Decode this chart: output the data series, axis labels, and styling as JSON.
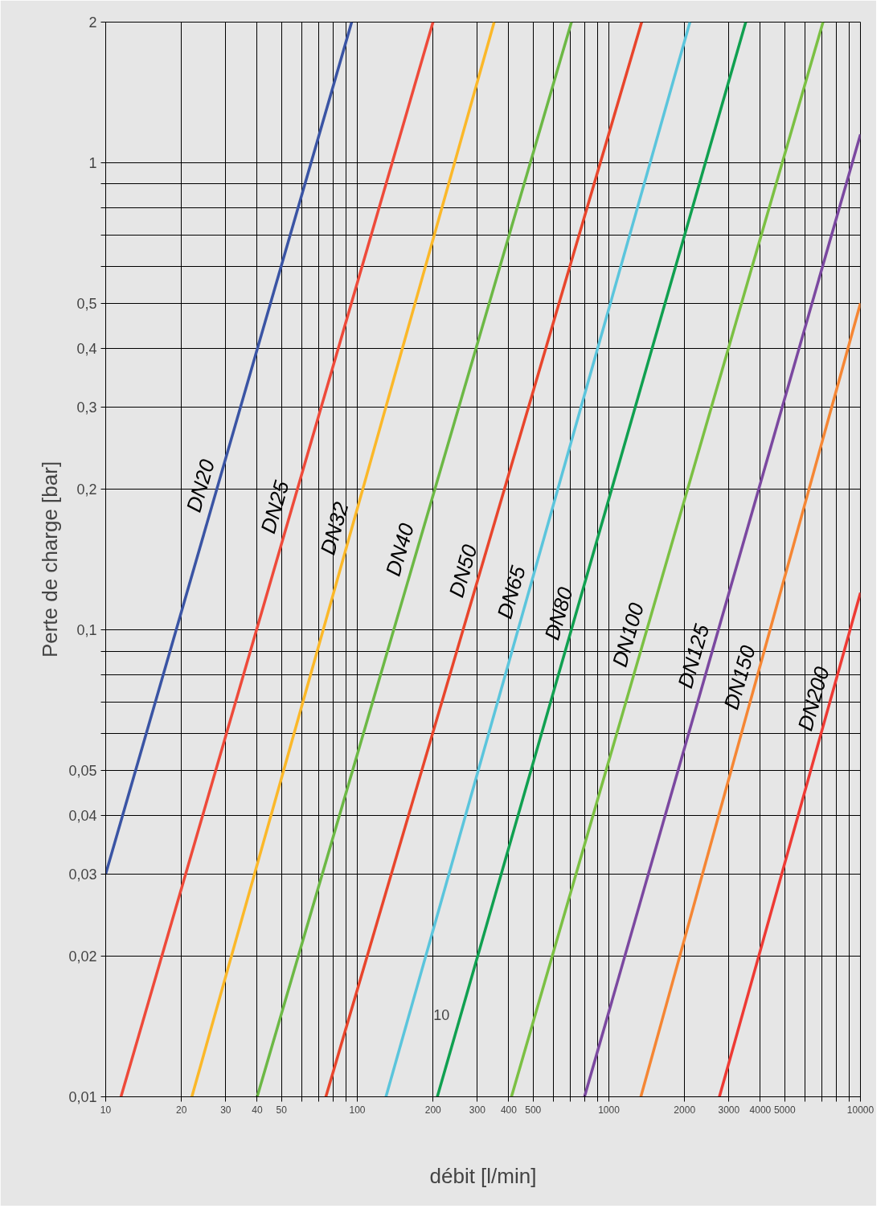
{
  "chart_data": {
    "type": "line",
    "xlabel": "débit [l/min]",
    "ylabel": "Perte de charge [bar]",
    "log": "xy",
    "grid": true,
    "xlim": [
      10,
      10000
    ],
    "ylim": [
      0.01,
      2
    ],
    "xticks": [
      10,
      20,
      30,
      40,
      50,
      {
        "value": 60,
        "label": null
      },
      {
        "value": 70,
        "label": null
      },
      {
        "value": 80,
        "label": null
      },
      {
        "value": 90,
        "label": null
      },
      100,
      200,
      300,
      400,
      500,
      {
        "value": 600,
        "label": null
      },
      {
        "value": 700,
        "label": null
      },
      {
        "value": 800,
        "label": null
      },
      {
        "value": 900,
        "label": null
      },
      1000,
      2000,
      3000,
      4000,
      5000,
      {
        "value": 6000,
        "label": null
      },
      {
        "value": 7000,
        "label": null
      },
      {
        "value": 8000,
        "label": null
      },
      {
        "value": 9000,
        "label": null
      },
      10000
    ],
    "yticks": [
      {
        "value": 0.01,
        "label": "0,01"
      },
      {
        "value": 0.02,
        "label": "0,02"
      },
      {
        "value": 0.03,
        "label": "0,03"
      },
      {
        "value": 0.04,
        "label": "0,04"
      },
      {
        "value": 0.05,
        "label": "0,05"
      },
      {
        "value": 0.06,
        "label": null
      },
      {
        "value": 0.07,
        "label": null
      },
      {
        "value": 0.08,
        "label": null
      },
      {
        "value": 0.09,
        "label": null
      },
      {
        "value": 0.1,
        "label": "0,1"
      },
      {
        "value": 0.2,
        "label": "0,2"
      },
      {
        "value": 0.3,
        "label": "0,3"
      },
      {
        "value": 0.4,
        "label": "0,4"
      },
      {
        "value": 0.5,
        "label": "0,5"
      },
      {
        "value": 0.6,
        "label": null
      },
      {
        "value": 0.7,
        "label": null
      },
      {
        "value": 0.8,
        "label": null
      },
      {
        "value": 0.9,
        "label": null
      },
      1,
      2
    ],
    "series": [
      {
        "name": "DN20",
        "color": "#3a54a4",
        "x": [
          10,
          95
        ],
        "values": [
          0.03,
          2
        ]
      },
      {
        "name": "DN25",
        "color": "#ee4a3a",
        "x": [
          11.5,
          200
        ],
        "values": [
          0.01,
          2
        ]
      },
      {
        "name": "DN32",
        "color": "#fbb829",
        "x": [
          22,
          350
        ],
        "values": [
          0.01,
          2
        ]
      },
      {
        "name": "DN40",
        "color": "#6cb845",
        "x": [
          40,
          710
        ],
        "values": [
          0.01,
          2
        ]
      },
      {
        "name": "DN50",
        "color": "#e8452c",
        "x": [
          75,
          1350
        ],
        "values": [
          0.01,
          2
        ]
      },
      {
        "name": "DN65",
        "color": "#5bc5dc",
        "x": [
          130,
          2100
        ],
        "values": [
          0.01,
          2
        ]
      },
      {
        "name": "DN80",
        "color": "#10a050",
        "x": [
          208,
          3500
        ],
        "values": [
          0.01,
          2
        ]
      },
      {
        "name": "DN100",
        "color": "#7bc043",
        "x": [
          410,
          7100
        ],
        "values": [
          0.01,
          2
        ]
      },
      {
        "name": "DN125",
        "color": "#7b48a0",
        "x": [
          800,
          10000
        ],
        "values": [
          0.01,
          1.15
        ]
      },
      {
        "name": "DN150",
        "color": "#f58634",
        "x": [
          1340,
          10000
        ],
        "values": [
          0.01,
          0.5
        ]
      },
      {
        "name": "DN200",
        "color": "#ee3a34",
        "x": [
          2750,
          10000
        ],
        "values": [
          0.01,
          0.12
        ]
      }
    ],
    "annotations": [
      {
        "text": "10",
        "x": 216,
        "y": 0.015
      }
    ]
  }
}
